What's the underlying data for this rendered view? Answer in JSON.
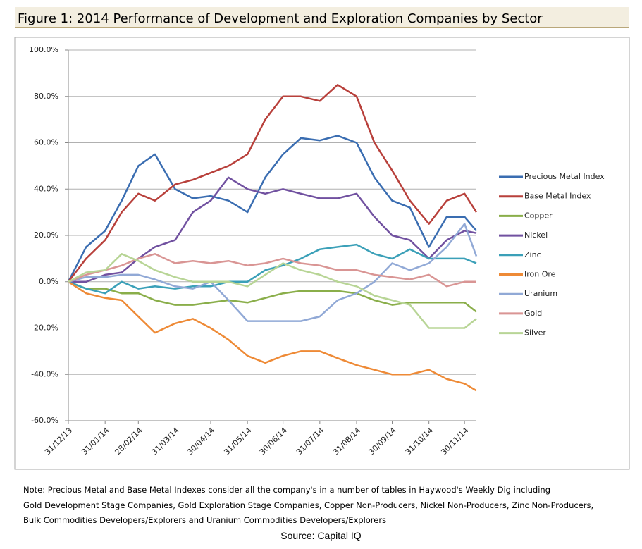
{
  "chart_data": {
    "type": "line",
    "title": "Figure 1: 2014 Performance of Development and Exploration Companies by Sector",
    "x": [
      "31/12/13",
      "15/01/14",
      "31/01/14",
      "14/02/14",
      "28/02/14",
      "14/03/14",
      "31/03/14",
      "15/04/14",
      "30/04/14",
      "15/05/14",
      "31/05/14",
      "15/06/14",
      "30/06/14",
      "15/07/14",
      "31/07/14",
      "15/08/14",
      "31/08/14",
      "15/09/14",
      "30/09/14",
      "15/10/14",
      "31/10/14",
      "15/11/14",
      "30/11/14",
      "10/12/14"
    ],
    "xlim": [
      "31/12/13",
      "10/12/14"
    ],
    "xticks": [
      "31/12/13",
      "31/01/14",
      "28/02/14",
      "31/03/14",
      "30/04/14",
      "31/05/14",
      "30/06/14",
      "31/07/14",
      "31/08/14",
      "30/09/14",
      "31/10/14",
      "30/11/14"
    ],
    "ylim": [
      -60,
      100
    ],
    "yticks": [
      {
        "value": -60,
        "label": "-60.0%"
      },
      {
        "value": -40,
        "label": "-40.0%"
      },
      {
        "value": -20,
        "label": "-20.0%"
      },
      {
        "value": 0,
        "label": "0.0%"
      },
      {
        "value": 20,
        "label": "20.0%"
      },
      {
        "value": 40,
        "label": "40.0%"
      },
      {
        "value": 60,
        "label": "60.0%"
      },
      {
        "value": 80,
        "label": "80.0%"
      },
      {
        "value": 100,
        "label": "100.0%"
      }
    ],
    "grid": true,
    "legend": "right",
    "series": [
      {
        "name": "Precious Metal Index",
        "color": "#3a6db1",
        "values": [
          0,
          15,
          22,
          35,
          50,
          55,
          40,
          36,
          37,
          35,
          30,
          45,
          55,
          62,
          61,
          63,
          60,
          45,
          35,
          32,
          15,
          28,
          28,
          22
        ]
      },
      {
        "name": "Base Metal Index",
        "color": "#b8403b",
        "values": [
          0,
          10,
          18,
          30,
          38,
          35,
          42,
          44,
          47,
          50,
          55,
          70,
          80,
          80,
          78,
          85,
          80,
          60,
          48,
          35,
          25,
          35,
          38,
          30
        ]
      },
      {
        "name": "Copper",
        "color": "#8aae4a",
        "values": [
          0,
          -3,
          -3,
          -5,
          -5,
          -8,
          -10,
          -10,
          -9,
          -8,
          -9,
          -7,
          -5,
          -4,
          -4,
          -4,
          -5,
          -8,
          -10,
          -9,
          -9,
          -9,
          -9,
          -13
        ]
      },
      {
        "name": "Nickel",
        "color": "#7151a0",
        "values": [
          0,
          0,
          3,
          4,
          10,
          15,
          18,
          30,
          35,
          45,
          40,
          38,
          40,
          38,
          36,
          36,
          38,
          28,
          20,
          18,
          10,
          18,
          22,
          21
        ]
      },
      {
        "name": "Zinc",
        "color": "#3ba0b8",
        "values": [
          0,
          -3,
          -5,
          0,
          -3,
          -2,
          -3,
          -2,
          -2,
          0,
          0,
          5,
          7,
          10,
          14,
          15,
          16,
          12,
          10,
          14,
          10,
          10,
          10,
          8
        ]
      },
      {
        "name": "Iron Ore",
        "color": "#ee8a36",
        "values": [
          0,
          -5,
          -7,
          -8,
          -15,
          -22,
          -18,
          -16,
          -20,
          -25,
          -32,
          -35,
          -32,
          -30,
          -30,
          -33,
          -36,
          -38,
          -40,
          -40,
          -38,
          -42,
          -44,
          -47
        ]
      },
      {
        "name": "Uranium",
        "color": "#91a9d6",
        "values": [
          0,
          2,
          2,
          3,
          3,
          1,
          -2,
          -3,
          0,
          -8,
          -17,
          -17,
          -17,
          -17,
          -15,
          -8,
          -5,
          0,
          8,
          5,
          8,
          15,
          25,
          11
        ]
      },
      {
        "name": "Gold",
        "color": "#d99594",
        "values": [
          0,
          3,
          5,
          7,
          10,
          12,
          8,
          9,
          8,
          9,
          7,
          8,
          10,
          8,
          7,
          5,
          5,
          3,
          2,
          1,
          3,
          -2,
          0,
          0
        ]
      },
      {
        "name": "Silver",
        "color": "#b8d596",
        "values": [
          0,
          4,
          5,
          12,
          9,
          5,
          2,
          0,
          0,
          0,
          -2,
          3,
          8,
          5,
          3,
          0,
          -2,
          -6,
          -8,
          -10,
          -20,
          -20,
          -20,
          -16
        ]
      }
    ]
  },
  "note": [
    "Note: Precious Metal and Base Metal Indexes consider all the company's in a number of tables in Haywood's Weekly Dig including",
    "Gold Development Stage Companies, Gold Exploration Stage Companies, Copper Non-Producers, Nickel Non-Producers, Zinc Non-Producers,",
    "Bulk Commodities Developers/Explorers and Uranium Commodities Developers/Explorers"
  ],
  "source": "Source: Capital IQ"
}
